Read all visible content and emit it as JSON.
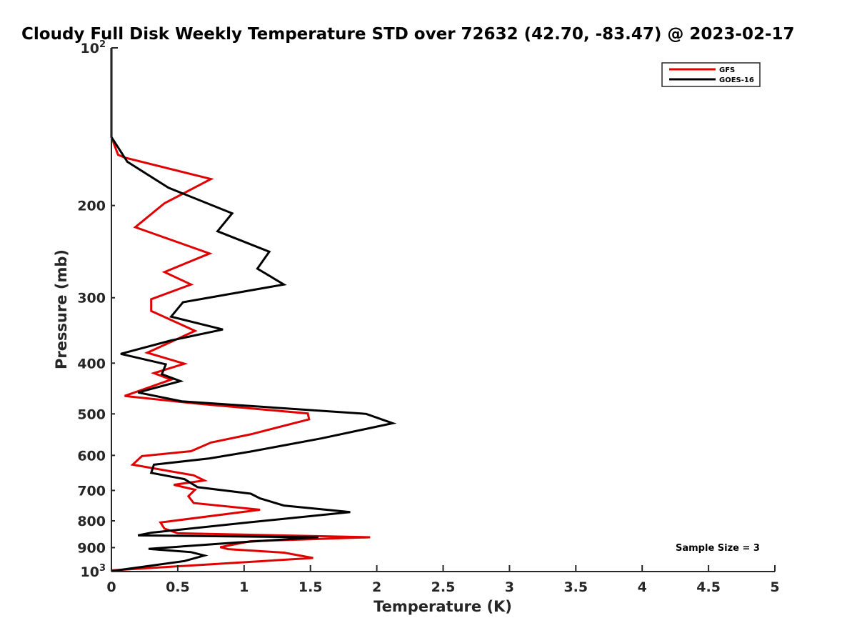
{
  "chart_data": {
    "type": "line",
    "title": "Cloudy Full Disk Weekly Temperature STD over 72632 (42.70, -83.47) @ 2023-02-17",
    "xlabel": "Temperature (K)",
    "ylabel": "Pressure (mb)",
    "xlim": [
      0,
      5
    ],
    "ylim": [
      100,
      1000
    ],
    "y_scale": "log",
    "y_reversed": true,
    "grid": false,
    "legend_position": "top-right",
    "x_tick_labels": [
      "0",
      "0.5",
      "1",
      "1.5",
      "2",
      "2.5",
      "3",
      "3.5",
      "4",
      "4.5",
      "5"
    ],
    "y_ticks": [
      {
        "value": 100,
        "base": "10",
        "exp": "2"
      },
      {
        "value": 200,
        "label": "200"
      },
      {
        "value": 300,
        "label": "300"
      },
      {
        "value": 400,
        "label": "400"
      },
      {
        "value": 500,
        "label": "500"
      },
      {
        "value": 600,
        "label": "600"
      },
      {
        "value": 700,
        "label": "700"
      },
      {
        "value": 800,
        "label": "800"
      },
      {
        "value": 900,
        "label": "900"
      },
      {
        "value": 1000,
        "base": "10",
        "exp": "3"
      }
    ],
    "annotation": "Sample Size = 3",
    "series": [
      {
        "name": "GFS",
        "color": "#e00000",
        "points": [
          [
            0,
            100
          ],
          [
            0,
            148
          ],
          [
            0.05,
            160
          ],
          [
            0.1,
            162
          ],
          [
            0.75,
            178
          ],
          [
            0.4,
            198
          ],
          [
            0.18,
            220
          ],
          [
            0.74,
            247
          ],
          [
            0.4,
            268
          ],
          [
            0.6,
            283
          ],
          [
            0.3,
            302
          ],
          [
            0.3,
            318
          ],
          [
            0.63,
            347
          ],
          [
            0.27,
            382
          ],
          [
            0.55,
            401
          ],
          [
            0.32,
            418
          ],
          [
            0.45,
            430
          ],
          [
            0.1,
            462
          ],
          [
            0.65,
            478
          ],
          [
            1.48,
            499
          ],
          [
            1.49,
            512
          ],
          [
            1.05,
            547
          ],
          [
            0.75,
            567
          ],
          [
            0.6,
            589
          ],
          [
            0.23,
            602
          ],
          [
            0.16,
            625
          ],
          [
            0.62,
            655
          ],
          [
            0.7,
            670
          ],
          [
            0.47,
            683
          ],
          [
            0.63,
            698
          ],
          [
            0.58,
            718
          ],
          [
            0.62,
            740
          ],
          [
            1.12,
            762
          ],
          [
            0.37,
            806
          ],
          [
            0.4,
            828
          ],
          [
            0.5,
            845
          ],
          [
            1.95,
            860
          ],
          [
            1.05,
            875
          ],
          [
            0.82,
            898
          ],
          [
            0.88,
            906
          ],
          [
            1.3,
            920
          ],
          [
            1.52,
            942
          ],
          [
            0,
            995
          ]
        ]
      },
      {
        "name": "GOES-16",
        "color": "#000000",
        "points": [
          [
            0,
            100
          ],
          [
            0,
            148
          ],
          [
            0.12,
            165
          ],
          [
            0.43,
            185
          ],
          [
            0.91,
            207
          ],
          [
            0.8,
            224
          ],
          [
            1.19,
            245
          ],
          [
            1.1,
            264
          ],
          [
            1.3,
            283
          ],
          [
            0.54,
            306
          ],
          [
            0.45,
            326
          ],
          [
            0.84,
            345
          ],
          [
            0.45,
            362
          ],
          [
            0.07,
            384
          ],
          [
            0.41,
            402
          ],
          [
            0.38,
            420
          ],
          [
            0.52,
            433
          ],
          [
            0.2,
            455
          ],
          [
            0.53,
            473
          ],
          [
            1.92,
            500
          ],
          [
            2.12,
            521
          ],
          [
            1.58,
            557
          ],
          [
            1.05,
            590
          ],
          [
            0.74,
            608
          ],
          [
            0.32,
            625
          ],
          [
            0.3,
            648
          ],
          [
            0.55,
            666
          ],
          [
            0.65,
            690
          ],
          [
            1.05,
            710
          ],
          [
            1.12,
            725
          ],
          [
            1.3,
            748
          ],
          [
            1.8,
            770
          ],
          [
            1.05,
            805
          ],
          [
            0.3,
            843
          ],
          [
            0.2,
            853
          ],
          [
            1.56,
            860
          ],
          [
            0.95,
            880
          ],
          [
            0.28,
            905
          ],
          [
            0.6,
            918
          ],
          [
            0.7,
            932
          ],
          [
            0.55,
            955
          ],
          [
            0,
            998
          ]
        ]
      }
    ]
  }
}
